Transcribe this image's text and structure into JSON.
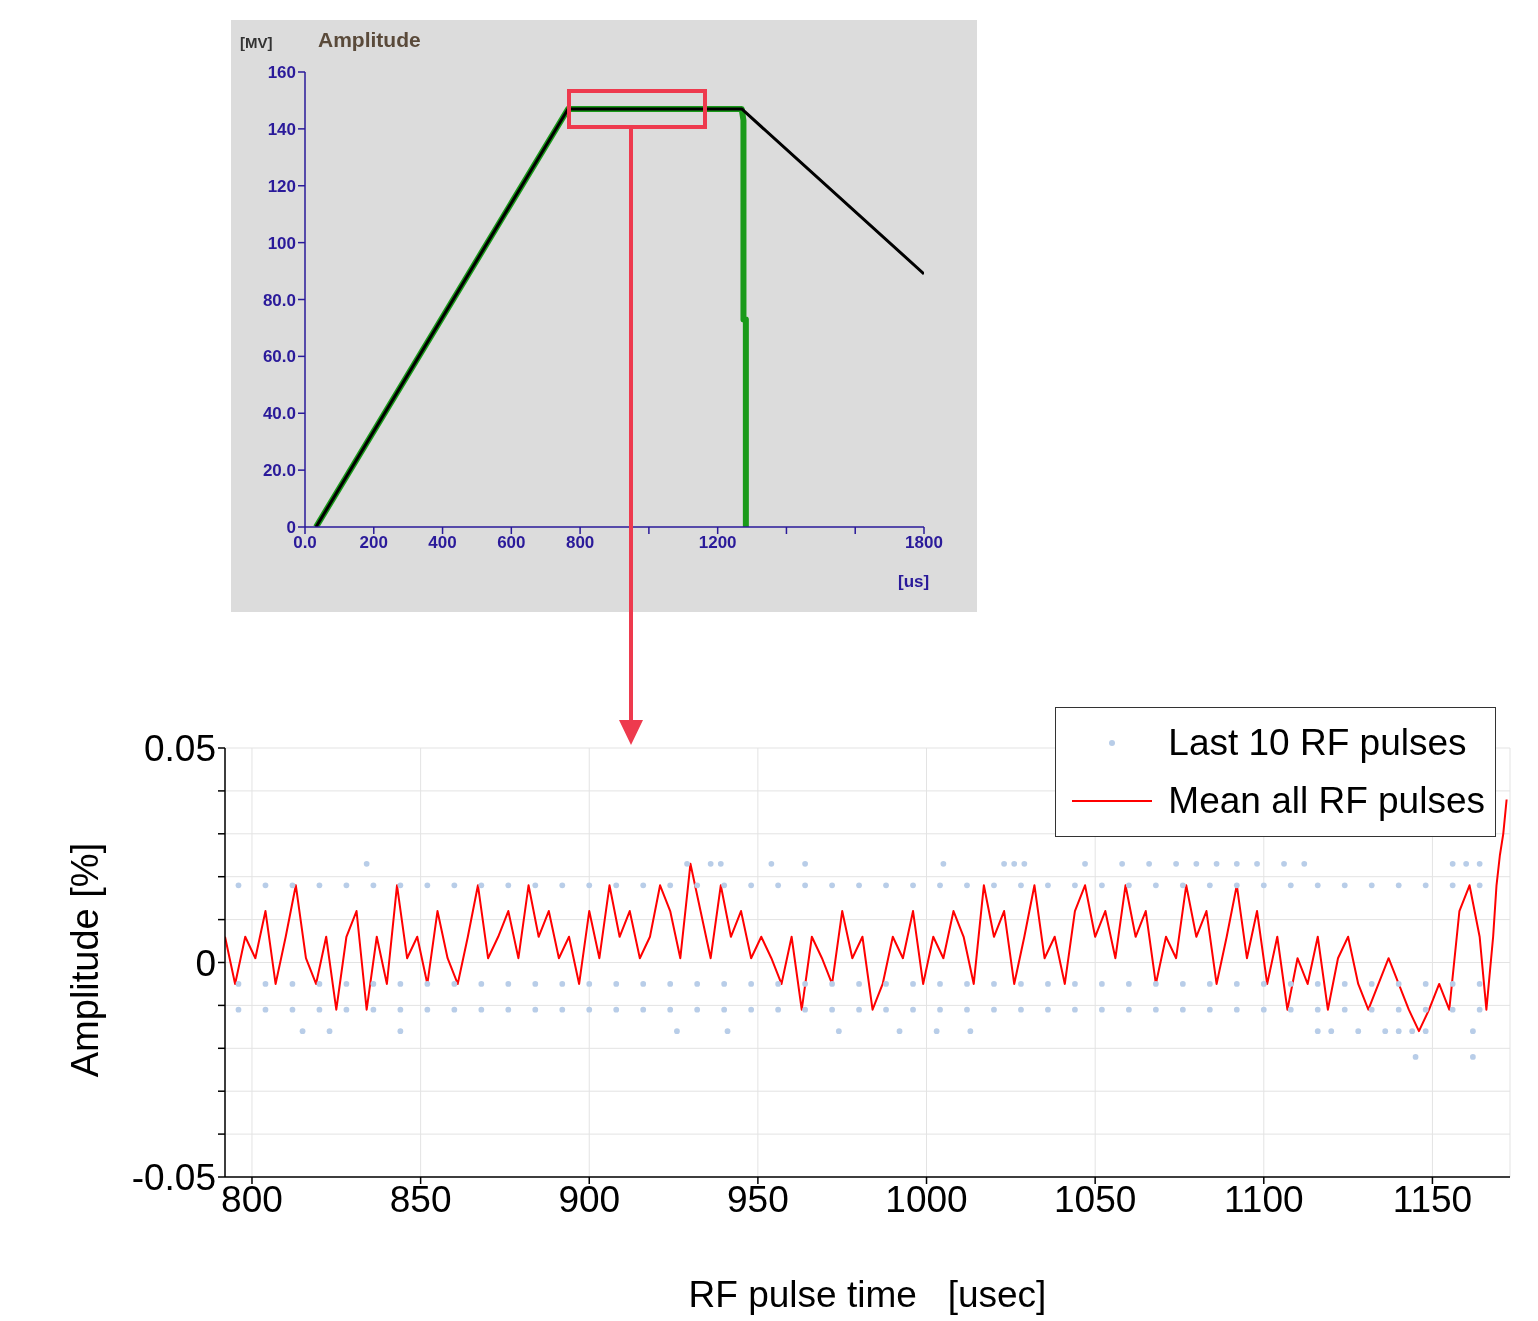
{
  "chart_data": [
    {
      "type": "line",
      "title": "Amplitude",
      "ylabel": "[MV]",
      "xlabel": "[us]",
      "xlim": [
        0,
        1800
      ],
      "xticks": [
        {
          "value": 0,
          "label": "0.0"
        },
        200,
        400,
        600,
        800,
        {
          "value": 1000,
          "label": null
        },
        1200,
        {
          "value": 1400,
          "label": null
        },
        {
          "value": 1600,
          "label": null
        },
        1800
      ],
      "ylim": [
        0,
        160
      ],
      "yticks": [
        0,
        {
          "value": 20,
          "label": "20.0"
        },
        {
          "value": 40,
          "label": "40.0"
        },
        {
          "value": 60,
          "label": "60.0"
        },
        {
          "value": 80,
          "label": "80.0"
        },
        100,
        120,
        140,
        160
      ],
      "grid": false,
      "series": [
        {
          "color": "#1a9a1a",
          "x": [
            32,
            765,
            1270,
            1275,
            1275,
            1282,
            1282
          ],
          "values": [
            0,
            147,
            147,
            143,
            73,
            73,
            0
          ]
        },
        {
          "color": "#000000",
          "x": [
            32,
            765,
            1270,
            1800
          ],
          "values": [
            0,
            147,
            147,
            89
          ]
        }
      ]
    },
    {
      "type": "line",
      "xlabel": "RF pulse time   [usec]",
      "ylabel": "Amplitude [%]",
      "xlim": [
        792,
        1173
      ],
      "xticks": [
        800,
        850,
        900,
        950,
        1000,
        1050,
        1100,
        1150
      ],
      "ylim": [
        -0.05,
        0.05
      ],
      "yticks": [
        -0.05,
        {
          "value": -0.04,
          "label": null
        },
        {
          "value": -0.03,
          "label": null
        },
        {
          "value": -0.02,
          "label": null
        },
        {
          "value": -0.01,
          "label": null
        },
        0,
        {
          "value": 0.01,
          "label": null
        },
        {
          "value": 0.02,
          "label": null
        },
        {
          "value": 0.03,
          "label": null
        },
        {
          "value": 0.04,
          "label": null
        },
        0.05
      ],
      "grid": true,
      "legend": "top right",
      "series": [
        {
          "name": "Last 10 RF pulses",
          "type": "scatter",
          "marker": "circle",
          "color": "#b8cde8",
          "x": [
            796,
            804,
            812,
            820,
            828,
            836,
            844,
            852,
            860,
            868,
            876,
            884,
            892,
            900,
            908,
            916,
            924,
            932,
            940,
            948,
            956,
            964,
            972,
            980,
            988,
            996,
            1004,
            1012,
            1020,
            1028,
            1036,
            1044,
            1052,
            1060,
            1068,
            1076,
            1084,
            1092,
            1100,
            1108,
            1116,
            1124,
            1132,
            1140,
            1148,
            1156,
            1164,
            796,
            804,
            812,
            820,
            828,
            836,
            844,
            852,
            860,
            868,
            876,
            884,
            892,
            900,
            908,
            916,
            924,
            932,
            940,
            948,
            956,
            964,
            972,
            980,
            988,
            996,
            1004,
            1012,
            1020,
            1028,
            1036,
            1044,
            1052,
            1060,
            1068,
            1076,
            1084,
            1092,
            1100,
            1108,
            1116,
            1124,
            1132,
            1140,
            1148,
            1156,
            1164,
            796,
            804,
            812,
            820,
            828,
            836,
            844,
            852,
            860,
            868,
            876,
            884,
            892,
            900,
            908,
            916,
            924,
            932,
            940,
            948,
            956,
            964,
            972,
            980,
            988,
            996,
            1004,
            1012,
            1020,
            1028,
            1036,
            1044,
            1052,
            1060,
            1068,
            1076,
            1084,
            1092,
            1100,
            1108,
            1116,
            1124,
            1132,
            1140,
            1148,
            1156,
            1164,
            834,
            929,
            936,
            939,
            954,
            964,
            1005,
            1023,
            1026,
            1029,
            1047,
            1058,
            1066,
            1074,
            1080,
            1086,
            1092,
            1098,
            1106,
            1112,
            1156,
            1160,
            1164,
            815,
            823,
            844,
            926,
            941,
            974,
            992,
            1003,
            1013,
            1116,
            1120,
            1128,
            1136,
            1140,
            1144,
            1148,
            1162,
            1145,
            1162
          ],
          "values": [
            0.018,
            0.018,
            0.018,
            0.018,
            0.018,
            0.018,
            0.018,
            0.018,
            0.018,
            0.018,
            0.018,
            0.018,
            0.018,
            0.018,
            0.018,
            0.018,
            0.018,
            0.018,
            0.018,
            0.018,
            0.018,
            0.018,
            0.018,
            0.018,
            0.018,
            0.018,
            0.018,
            0.018,
            0.018,
            0.018,
            0.018,
            0.018,
            0.018,
            0.018,
            0.018,
            0.018,
            0.018,
            0.018,
            0.018,
            0.018,
            0.018,
            0.018,
            0.018,
            0.018,
            0.018,
            0.018,
            0.018,
            -0.005,
            -0.005,
            -0.005,
            -0.005,
            -0.005,
            -0.005,
            -0.005,
            -0.005,
            -0.005,
            -0.005,
            -0.005,
            -0.005,
            -0.005,
            -0.005,
            -0.005,
            -0.005,
            -0.005,
            -0.005,
            -0.005,
            -0.005,
            -0.005,
            -0.005,
            -0.005,
            -0.005,
            -0.005,
            -0.005,
            -0.005,
            -0.005,
            -0.005,
            -0.005,
            -0.005,
            -0.005,
            -0.005,
            -0.005,
            -0.005,
            -0.005,
            -0.005,
            -0.005,
            -0.005,
            -0.005,
            -0.005,
            -0.005,
            -0.005,
            -0.005,
            -0.005,
            -0.005,
            -0.005,
            -0.011,
            -0.011,
            -0.011,
            -0.011,
            -0.011,
            -0.011,
            -0.011,
            -0.011,
            -0.011,
            -0.011,
            -0.011,
            -0.011,
            -0.011,
            -0.011,
            -0.011,
            -0.011,
            -0.011,
            -0.011,
            -0.011,
            -0.011,
            -0.011,
            -0.011,
            -0.011,
            -0.011,
            -0.011,
            -0.011,
            -0.011,
            -0.011,
            -0.011,
            -0.011,
            -0.011,
            -0.011,
            -0.011,
            -0.011,
            -0.011,
            -0.011,
            -0.011,
            -0.011,
            -0.011,
            -0.011,
            -0.011,
            -0.011,
            -0.011,
            -0.011,
            -0.011,
            -0.011,
            -0.011,
            0.023,
            0.023,
            0.023,
            0.023,
            0.023,
            0.023,
            0.023,
            0.023,
            0.023,
            0.023,
            0.023,
            0.023,
            0.023,
            0.023,
            0.023,
            0.023,
            0.023,
            0.023,
            0.023,
            0.023,
            0.023,
            0.023,
            0.023,
            -0.016,
            -0.016,
            -0.016,
            -0.016,
            -0.016,
            -0.016,
            -0.016,
            -0.016,
            -0.016,
            -0.016,
            -0.016,
            -0.016,
            -0.016,
            -0.016,
            -0.016,
            -0.016,
            -0.016,
            -0.022,
            -0.022
          ]
        },
        {
          "name": "Mean all RF pulses",
          "marker": "none",
          "color": "#ff0000",
          "x": [
            792,
            795,
            798,
            801,
            804,
            807,
            810,
            813,
            816,
            819,
            822,
            825,
            828,
            831,
            834,
            837,
            840,
            843,
            846,
            849,
            852,
            855,
            858,
            861,
            864,
            867,
            870,
            873,
            876,
            879,
            882,
            885,
            888,
            891,
            894,
            897,
            900,
            903,
            906,
            909,
            912,
            915,
            918,
            921,
            924,
            927,
            930,
            933,
            936,
            939,
            942,
            945,
            948,
            951,
            954,
            957,
            960,
            963,
            966,
            969,
            972,
            975,
            978,
            981,
            984,
            987,
            990,
            993,
            996,
            999,
            1002,
            1005,
            1008,
            1011,
            1014,
            1017,
            1020,
            1023,
            1026,
            1029,
            1032,
            1035,
            1038,
            1041,
            1044,
            1047,
            1050,
            1053,
            1056,
            1059,
            1062,
            1065,
            1068,
            1071,
            1074,
            1077,
            1080,
            1083,
            1086,
            1089,
            1092,
            1095,
            1098,
            1101,
            1104,
            1107,
            1110,
            1113,
            1116,
            1119,
            1122,
            1125,
            1128,
            1131,
            1134,
            1137,
            1140,
            1143,
            1146,
            1149,
            1152,
            1155,
            1158,
            1161,
            1164,
            1166,
            1168,
            1169,
            1170,
            1171,
            1172
          ],
          "values": [
            0.006,
            -0.005,
            0.006,
            0.001,
            0.012,
            -0.005,
            0.006,
            0.018,
            0.001,
            -0.005,
            0.006,
            -0.011,
            0.006,
            0.012,
            -0.011,
            0.006,
            -0.005,
            0.018,
            0.001,
            0.006,
            -0.005,
            0.012,
            0.001,
            -0.005,
            0.006,
            0.018,
            0.001,
            0.006,
            0.012,
            0.001,
            0.018,
            0.006,
            0.012,
            0.001,
            0.006,
            -0.005,
            0.012,
            0.001,
            0.018,
            0.006,
            0.012,
            0.001,
            0.006,
            0.018,
            0.012,
            0.001,
            0.023,
            0.012,
            0.001,
            0.018,
            0.006,
            0.012,
            0.001,
            0.006,
            0.001,
            -0.005,
            0.006,
            -0.011,
            0.006,
            0.001,
            -0.005,
            0.012,
            0.001,
            0.006,
            -0.011,
            -0.005,
            0.006,
            0.001,
            0.012,
            -0.005,
            0.006,
            0.001,
            0.012,
            0.006,
            -0.005,
            0.018,
            0.006,
            0.012,
            -0.005,
            0.006,
            0.018,
            0.001,
            0.006,
            -0.005,
            0.012,
            0.018,
            0.006,
            0.012,
            0.001,
            0.018,
            0.006,
            0.012,
            -0.005,
            0.006,
            0.001,
            0.018,
            0.006,
            0.012,
            -0.005,
            0.006,
            0.018,
            0.001,
            0.012,
            -0.005,
            0.006,
            -0.011,
            0.001,
            -0.005,
            0.006,
            -0.011,
            0.001,
            0.006,
            -0.005,
            -0.011,
            -0.005,
            0.001,
            -0.005,
            -0.011,
            -0.016,
            -0.011,
            -0.005,
            -0.011,
            0.012,
            0.018,
            0.006,
            -0.011,
            0.006,
            0.018,
            0.025,
            0.03,
            0.038
          ]
        }
      ]
    }
  ]
}
